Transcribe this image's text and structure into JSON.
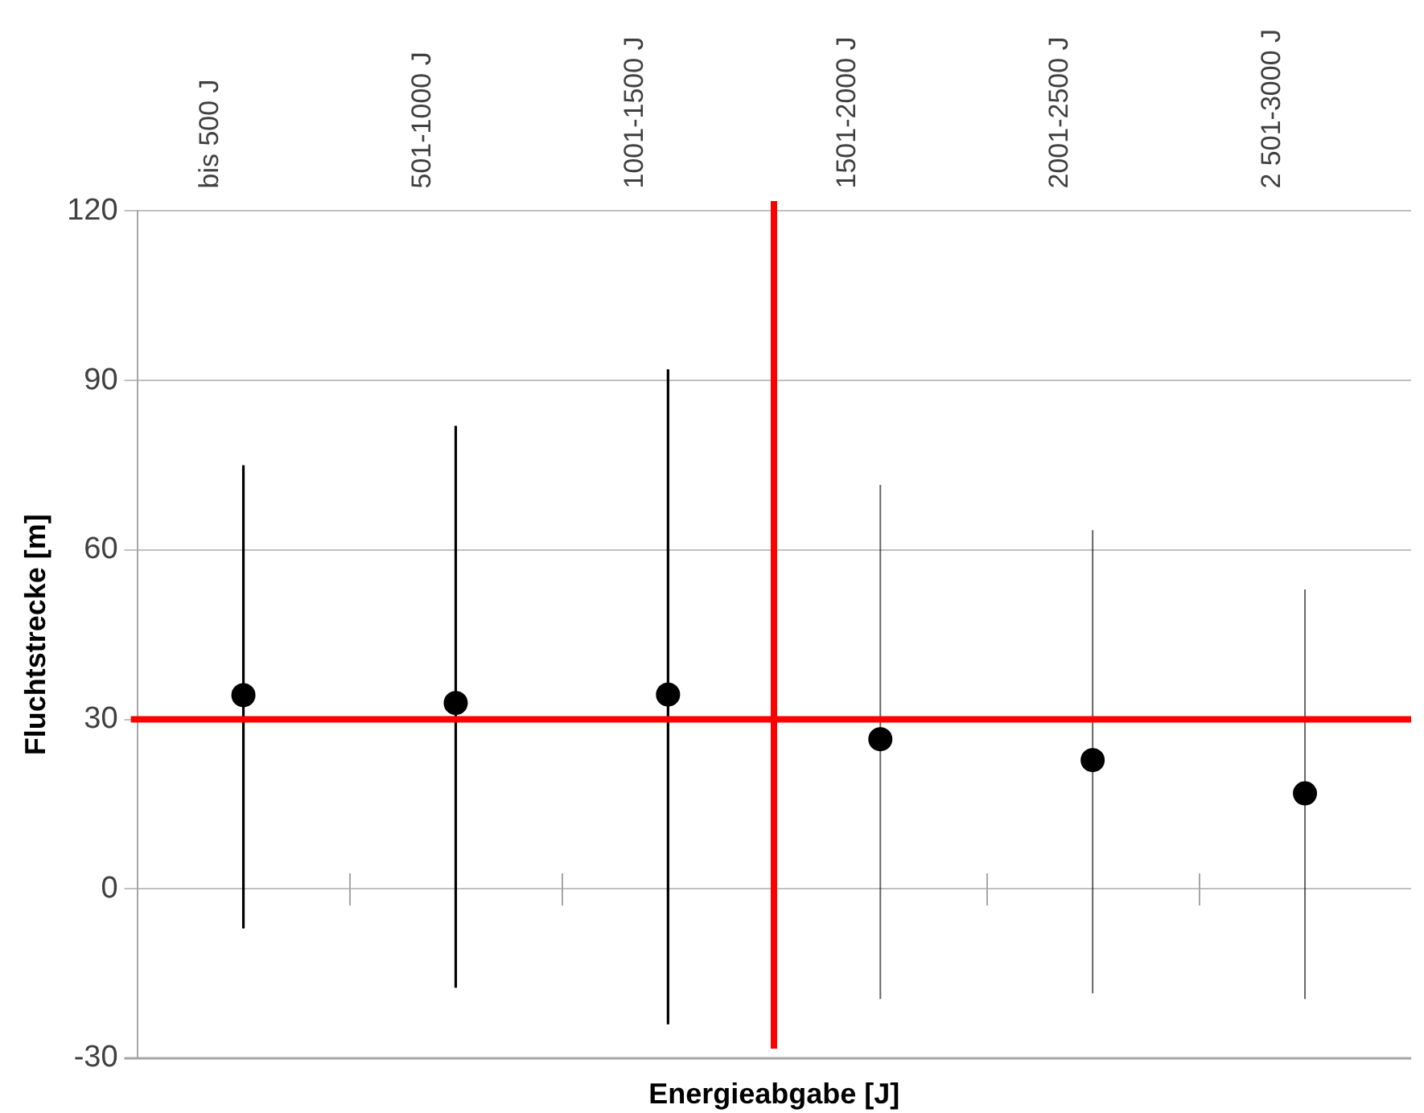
{
  "chart_data": {
    "type": "scatter",
    "xlabel": "Energieabgabe [J]",
    "ylabel": "Fluchtstrecke [m]",
    "categories": [
      "bis 500 J",
      "501-1000 J",
      "1001-1500 J",
      "1501-2000 J",
      "2001-2500 J",
      "2 501-3000 J"
    ],
    "series": [
      {
        "color": "#000000",
        "values": [
          34.3,
          32.9,
          34.4,
          26.5,
          22.8,
          16.9
        ],
        "errors": [
          [
            -7,
            75
          ],
          [
            -17.5,
            82
          ],
          [
            -24,
            92
          ],
          [
            -19.5,
            71.5
          ],
          [
            -18.5,
            63.5
          ],
          [
            -19.5,
            53
          ]
        ]
      }
    ],
    "ylim": [
      -30,
      120
    ],
    "yticks": [
      -30,
      0,
      30,
      60,
      90,
      120
    ],
    "ref_lines": [
      {
        "axis": "y",
        "value": 30,
        "color": "#ff0000"
      }
    ],
    "grid": "y",
    "legend": false,
    "marker": "circle"
  }
}
